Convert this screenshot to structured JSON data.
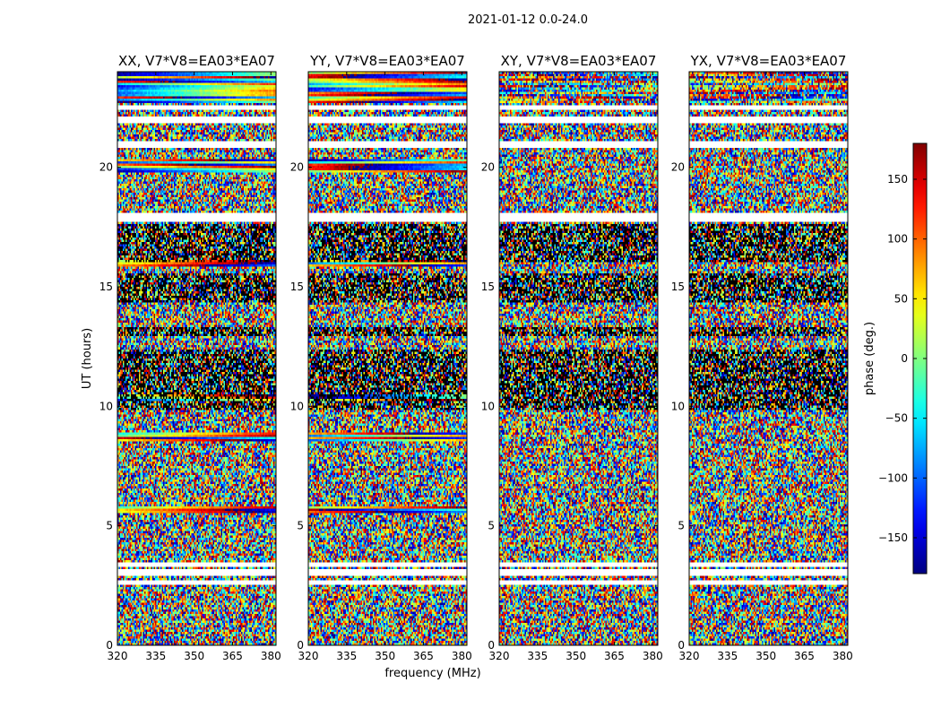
{
  "chart_data": {
    "type": "heatmap",
    "title": "2021-01-12 0.0-24.0",
    "xlabel": "frequency (MHz)",
    "ylabel": "UT (hours)",
    "xlim": [
      320,
      382
    ],
    "ylim": [
      0,
      24
    ],
    "xticks": [
      320,
      335,
      350,
      365,
      380
    ],
    "yticks": [
      0,
      5,
      10,
      15,
      20
    ],
    "panels": [
      {
        "title": "XX, V7*V8=EA03*EA07",
        "show_ylabel": true,
        "show_xlabel": false
      },
      {
        "title": "YY, V7*V8=EA03*EA07",
        "show_ylabel": false,
        "show_xlabel": true
      },
      {
        "title": "XY, V7*V8=EA03*EA07",
        "show_ylabel": false,
        "show_xlabel": false
      },
      {
        "title": "YX, V7*V8=EA03*EA07",
        "show_ylabel": false,
        "show_xlabel": false
      }
    ],
    "colorbar": {
      "label": "phase (deg.)",
      "range": [
        -180,
        180
      ],
      "ticks": [
        150,
        100,
        50,
        0,
        -50,
        -100,
        -150
      ],
      "tick_labels": [
        "150",
        "100",
        "50",
        "0",
        "−50",
        "−100",
        "−150"
      ],
      "colormap": "jet"
    },
    "blank_rows_ut": [
      [
        2.55,
        2.68
      ],
      [
        2.95,
        3.15
      ],
      [
        3.3,
        3.5
      ],
      [
        17.7,
        18.05
      ],
      [
        20.85,
        21.1
      ],
      [
        21.85,
        22.15
      ],
      [
        22.4,
        22.55
      ]
    ],
    "flagged_black_ut_ranges": [
      [
        9.8,
        12.4
      ],
      [
        12.9,
        13.3
      ],
      [
        14.3,
        15.6
      ],
      [
        16.0,
        17.6
      ]
    ],
    "coherent_stripes_ut": [
      {
        "panels": [
          "XX",
          "YY"
        ],
        "ut": [
          10.2,
          10.5
        ]
      },
      {
        "panels": [
          "XX",
          "YY"
        ],
        "ut": [
          8.5,
          8.9
        ]
      },
      {
        "panels": [
          "XX",
          "YY"
        ],
        "ut": [
          5.5,
          5.8
        ]
      },
      {
        "panels": [
          "XX",
          "YY"
        ],
        "ut": [
          15.8,
          16.1
        ]
      },
      {
        "panels": [
          "XX",
          "YY"
        ],
        "ut": [
          19.8,
          20.3
        ]
      },
      {
        "panels": [
          "XX",
          "YY",
          "XY",
          "YX"
        ],
        "ut": [
          22.7,
          24.0
        ]
      }
    ]
  }
}
